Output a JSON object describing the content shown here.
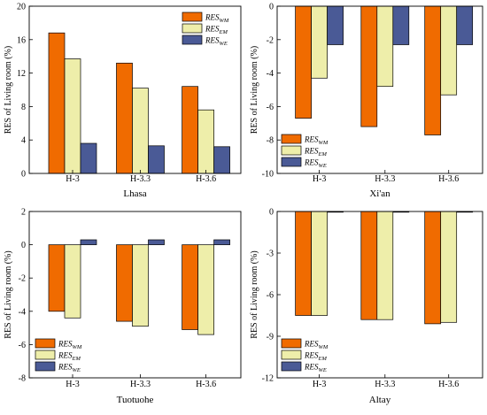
{
  "legend_entries": [
    {
      "key": "wm",
      "base": "RES",
      "sub": "WM",
      "color": "#f06b00"
    },
    {
      "key": "em",
      "base": "RES",
      "sub": "EM",
      "color": "#eeeeaa"
    },
    {
      "key": "we",
      "base": "RES",
      "sub": "WE",
      "color": "#4a5a96"
    }
  ],
  "chart_data": [
    {
      "type": "bar",
      "xlabel": "Lhasa",
      "ylabel": "RES of Living room (%)",
      "categories": [
        "H-3",
        "H-3.3",
        "H-3.6"
      ],
      "ylim": [
        0,
        20
      ],
      "yticks": [
        0,
        4,
        8,
        12,
        16,
        20
      ],
      "legend": "top-right",
      "series": [
        {
          "name": "RES_WM",
          "values": [
            16.8,
            13.2,
            10.4
          ]
        },
        {
          "name": "RES_EM",
          "values": [
            13.7,
            10.2,
            7.6
          ]
        },
        {
          "name": "RES_WE",
          "values": [
            3.6,
            3.3,
            3.2
          ]
        }
      ]
    },
    {
      "type": "bar",
      "xlabel": "Xi'an",
      "ylabel": "RES of Living room (%)",
      "categories": [
        "H-3",
        "H-3.3",
        "H-3.6"
      ],
      "ylim": [
        -10,
        0
      ],
      "yticks": [
        -10,
        -8,
        -6,
        -4,
        -2,
        0
      ],
      "legend": "bottom-left",
      "series": [
        {
          "name": "RES_WM",
          "values": [
            -6.7,
            -7.2,
            -7.7
          ]
        },
        {
          "name": "RES_EM",
          "values": [
            -4.3,
            -4.8,
            -5.3
          ]
        },
        {
          "name": "RES_WE",
          "values": [
            -2.3,
            -2.3,
            -2.3
          ]
        }
      ]
    },
    {
      "type": "bar",
      "xlabel": "Tuotuohe",
      "ylabel": "RES of Living room (%)",
      "categories": [
        "H-3",
        "H-3.3",
        "H-3.6"
      ],
      "ylim": [
        -8,
        2
      ],
      "yticks": [
        -8,
        -6,
        -4,
        -2,
        0,
        2
      ],
      "legend": "bottom-left",
      "series": [
        {
          "name": "RES_WM",
          "values": [
            -4.0,
            -4.6,
            -5.1
          ]
        },
        {
          "name": "RES_EM",
          "values": [
            -4.4,
            -4.9,
            -5.4
          ]
        },
        {
          "name": "RES_WE",
          "values": [
            0.3,
            0.3,
            0.3
          ]
        }
      ]
    },
    {
      "type": "bar",
      "xlabel": "Altay",
      "ylabel": "RES of Living room (%)",
      "categories": [
        "H-3",
        "H-3.3",
        "H-3.6"
      ],
      "ylim": [
        -12,
        0
      ],
      "yticks": [
        -12,
        -9,
        -6,
        -3,
        0
      ],
      "legend": "bottom-left",
      "series": [
        {
          "name": "RES_WM",
          "values": [
            -7.5,
            -7.8,
            -8.1
          ]
        },
        {
          "name": "RES_EM",
          "values": [
            -7.5,
            -7.8,
            -8.0
          ]
        },
        {
          "name": "RES_WE",
          "values": [
            -0.05,
            -0.05,
            -0.05
          ]
        }
      ]
    }
  ]
}
